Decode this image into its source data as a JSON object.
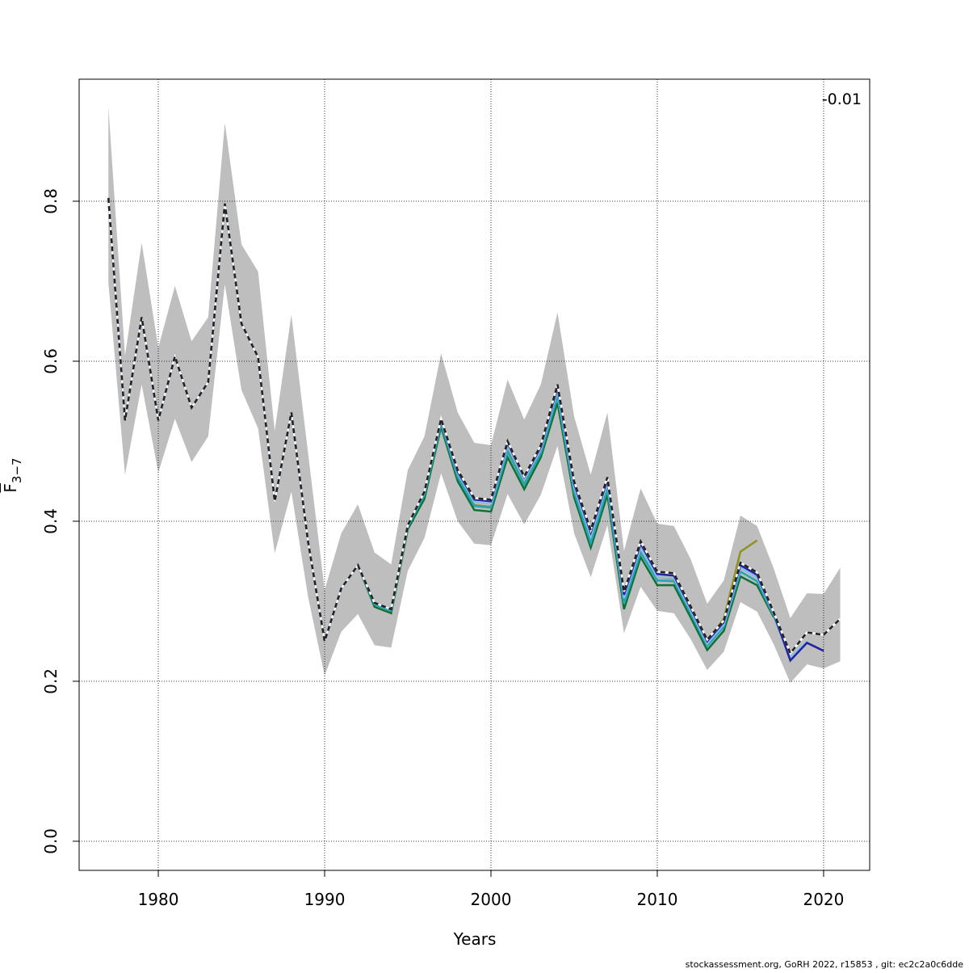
{
  "chart_data": {
    "type": "line",
    "xlabel": "Years",
    "ylabel": "F",
    "ylabel_subscript": "3−7",
    "annotation": "-0.01",
    "footer": "stockassessment.org, GoRH  2022, r15853 , git: ec2c2a0c6dde",
    "x": [
      1977,
      1978,
      1979,
      1980,
      1981,
      1982,
      1983,
      1984,
      1985,
      1986,
      1987,
      1988,
      1989,
      1990,
      1991,
      1992,
      1993,
      1994,
      1995,
      1996,
      1997,
      1998,
      1999,
      2000,
      2001,
      2002,
      2003,
      2004,
      2005,
      2006,
      2007,
      2008,
      2009,
      2010,
      2011,
      2012,
      2013,
      2014,
      2015,
      2016,
      2017,
      2018,
      2019,
      2020,
      2021
    ],
    "xlim": [
      1975.24,
      2022.77
    ],
    "xticks": [
      1980,
      1990,
      2000,
      2010,
      2020
    ],
    "ylim": [
      -0.0364,
      0.9525
    ],
    "yticks": [
      {
        "value": 0,
        "label": "0.0"
      },
      0.2,
      0.4,
      0.6,
      0.8
    ],
    "grid": true,
    "band": {
      "color": "#bebebe",
      "upper": [
        0.918,
        0.607,
        0.748,
        0.617,
        0.694,
        0.625,
        0.655,
        0.898,
        0.746,
        0.712,
        0.513,
        0.658,
        0.486,
        0.314,
        0.385,
        0.421,
        0.361,
        0.346,
        0.464,
        0.506,
        0.61,
        0.536,
        0.498,
        0.495,
        0.577,
        0.527,
        0.571,
        0.661,
        0.531,
        0.458,
        0.536,
        0.363,
        0.441,
        0.397,
        0.394,
        0.353,
        0.297,
        0.326,
        0.407,
        0.394,
        0.341,
        0.279,
        0.31,
        0.309,
        0.342
      ],
      "lower": [
        0.698,
        0.458,
        0.571,
        0.461,
        0.528,
        0.474,
        0.506,
        0.696,
        0.564,
        0.516,
        0.36,
        0.437,
        0.306,
        0.207,
        0.262,
        0.284,
        0.245,
        0.242,
        0.338,
        0.379,
        0.46,
        0.4,
        0.372,
        0.37,
        0.434,
        0.396,
        0.433,
        0.494,
        0.385,
        0.33,
        0.395,
        0.26,
        0.318,
        0.288,
        0.285,
        0.253,
        0.214,
        0.237,
        0.299,
        0.287,
        0.246,
        0.198,
        0.221,
        0.216,
        0.225
      ]
    },
    "series": [
      {
        "color": "#8f9020",
        "dashed": false,
        "values": [
          0.804,
          0.526,
          0.655,
          0.526,
          0.606,
          0.542,
          0.574,
          0.797,
          0.647,
          0.605,
          0.425,
          0.536,
          0.375,
          0.25,
          0.316,
          0.345,
          0.298,
          0.29,
          0.395,
          0.437,
          0.522,
          0.455,
          0.42,
          0.418,
          0.49,
          0.447,
          0.488,
          0.558,
          0.44,
          0.378,
          0.445,
          0.3,
          0.368,
          0.33,
          0.328,
          0.29,
          0.25,
          0.278,
          0.362,
          0.376,
          null,
          null,
          null,
          null,
          null
        ]
      },
      {
        "color": "#107035",
        "dashed": false,
        "values": [
          0.804,
          0.526,
          0.655,
          0.526,
          0.606,
          0.542,
          0.574,
          0.797,
          0.647,
          0.605,
          0.425,
          0.536,
          0.375,
          0.25,
          0.316,
          0.345,
          0.293,
          0.285,
          0.39,
          0.428,
          0.518,
          0.45,
          0.414,
          0.412,
          0.48,
          0.44,
          0.48,
          0.548,
          0.43,
          0.367,
          0.433,
          0.29,
          0.355,
          0.32,
          0.32,
          0.28,
          0.239,
          0.263,
          0.331,
          0.32,
          0.28,
          null,
          null,
          null,
          null
        ]
      },
      {
        "color": "#22a5b5",
        "dashed": false,
        "values": [
          0.804,
          0.526,
          0.655,
          0.526,
          0.606,
          0.542,
          0.574,
          0.797,
          0.647,
          0.605,
          0.425,
          0.536,
          0.375,
          0.25,
          0.316,
          0.345,
          0.296,
          0.288,
          0.393,
          0.433,
          0.522,
          0.455,
          0.419,
          0.417,
          0.487,
          0.446,
          0.485,
          0.556,
          0.436,
          0.373,
          0.44,
          0.297,
          0.361,
          0.326,
          0.325,
          0.285,
          0.244,
          0.268,
          0.337,
          0.325,
          0.282,
          0.228,
          null,
          null,
          null
        ]
      },
      {
        "color": "#8cbde6",
        "dashed": false,
        "values": [
          0.804,
          0.526,
          0.655,
          0.526,
          0.606,
          0.542,
          0.574,
          0.797,
          0.647,
          0.605,
          0.425,
          0.536,
          0.375,
          0.25,
          0.316,
          0.345,
          0.298,
          0.29,
          0.395,
          0.437,
          0.526,
          0.46,
          0.424,
          0.422,
          0.494,
          0.452,
          0.49,
          0.564,
          0.443,
          0.381,
          0.448,
          0.304,
          0.368,
          0.33,
          0.329,
          0.289,
          0.247,
          0.271,
          0.342,
          0.33,
          0.284,
          0.23,
          0.25,
          null,
          null
        ]
      },
      {
        "color": "#2222a0",
        "dashed": false,
        "values": [
          0.804,
          0.526,
          0.655,
          0.526,
          0.606,
          0.542,
          0.574,
          0.797,
          0.647,
          0.605,
          0.425,
          0.536,
          0.375,
          0.25,
          0.316,
          0.345,
          0.298,
          0.29,
          0.395,
          0.437,
          0.527,
          0.462,
          0.427,
          0.425,
          0.498,
          0.455,
          0.493,
          0.568,
          0.447,
          0.386,
          0.452,
          0.308,
          0.372,
          0.334,
          0.332,
          0.292,
          0.25,
          0.274,
          0.345,
          0.333,
          0.285,
          0.226,
          0.248,
          0.238,
          null
        ]
      },
      {
        "color": "#222222",
        "dashed": true,
        "values": [
          0.804,
          0.526,
          0.655,
          0.526,
          0.606,
          0.542,
          0.574,
          0.797,
          0.647,
          0.605,
          0.425,
          0.536,
          0.375,
          0.25,
          0.316,
          0.345,
          0.298,
          0.29,
          0.395,
          0.437,
          0.528,
          0.464,
          0.429,
          0.427,
          0.5,
          0.456,
          0.495,
          0.571,
          0.45,
          0.389,
          0.455,
          0.312,
          0.375,
          0.337,
          0.335,
          0.294,
          0.252,
          0.276,
          0.348,
          0.336,
          0.286,
          0.235,
          0.261,
          0.258,
          0.278
        ]
      }
    ]
  }
}
